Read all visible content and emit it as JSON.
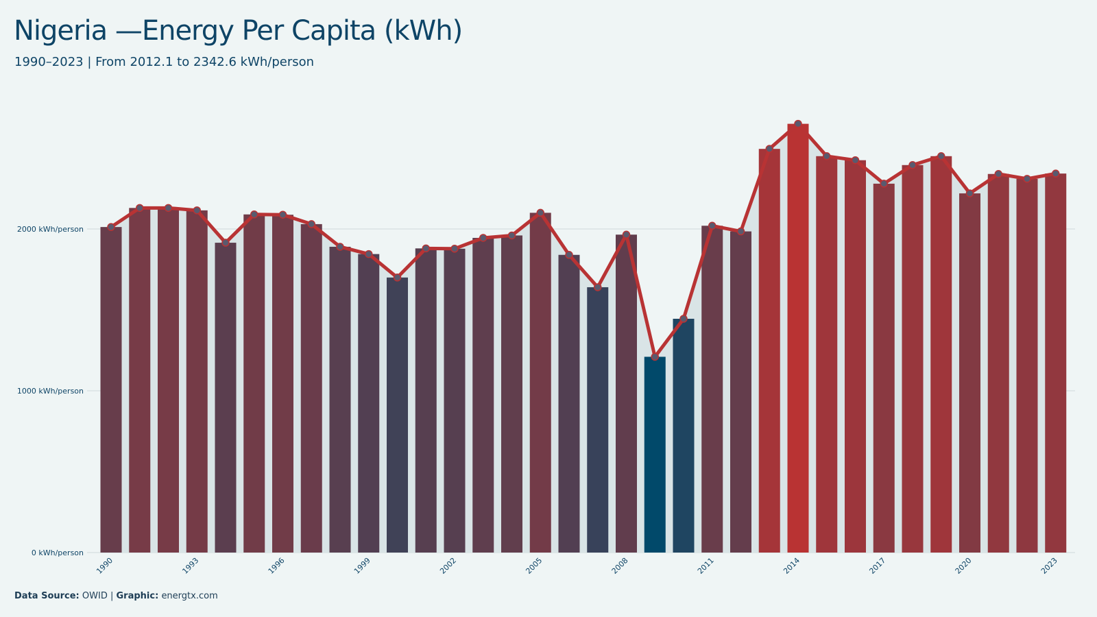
{
  "title": "Nigeria —Energy Per Capita (kWh)",
  "subtitle": "1990–2023 | From 2012.1 to 2342.6 kWh/person",
  "caption": {
    "source_label": "Data Source:",
    "source_value": "OWID",
    "separator": "|",
    "graphic_label": "Graphic:",
    "graphic_value": "energtx.com"
  },
  "colors": {
    "background": "#eff5f5",
    "low": "#01496a",
    "high": "#b93333",
    "line": "#b83334",
    "point_fill": "#5a5a6e",
    "area": "#d9e4e6",
    "grid": "#d5dfe0",
    "text": "#0e4466"
  },
  "chart_data": {
    "type": "bar",
    "overlay": "line with points and shaded area",
    "years": [
      1990,
      1991,
      1992,
      1993,
      1994,
      1995,
      1996,
      1997,
      1998,
      1999,
      2000,
      2001,
      2002,
      2003,
      2004,
      2005,
      2006,
      2007,
      2008,
      2009,
      2010,
      2011,
      2012,
      2013,
      2014,
      2015,
      2016,
      2017,
      2018,
      2019,
      2020,
      2021,
      2022,
      2023
    ],
    "values": [
      2012.1,
      2130,
      2130,
      2115,
      1915,
      2090,
      2088,
      2030,
      1890,
      1845,
      1700,
      1880,
      1878,
      1945,
      1960,
      2100,
      1840,
      1640,
      1965,
      1210,
      1445,
      2020,
      1985,
      2495,
      2650,
      2450,
      2425,
      2280,
      2395,
      2450,
      2220,
      2340,
      2310,
      2342.6
    ],
    "ylim": [
      0,
      2700
    ],
    "yticks": [
      {
        "value": 0,
        "label": "0 kWh/person"
      },
      {
        "value": 1000,
        "label": "1000 kWh/person"
      },
      {
        "value": 2000,
        "label": "2000 kWh/person"
      }
    ],
    "xtick_years": [
      1990,
      1993,
      1996,
      1999,
      2002,
      2005,
      2008,
      2011,
      2014,
      2017,
      2020,
      2023
    ],
    "grid": true,
    "legend": "none"
  }
}
